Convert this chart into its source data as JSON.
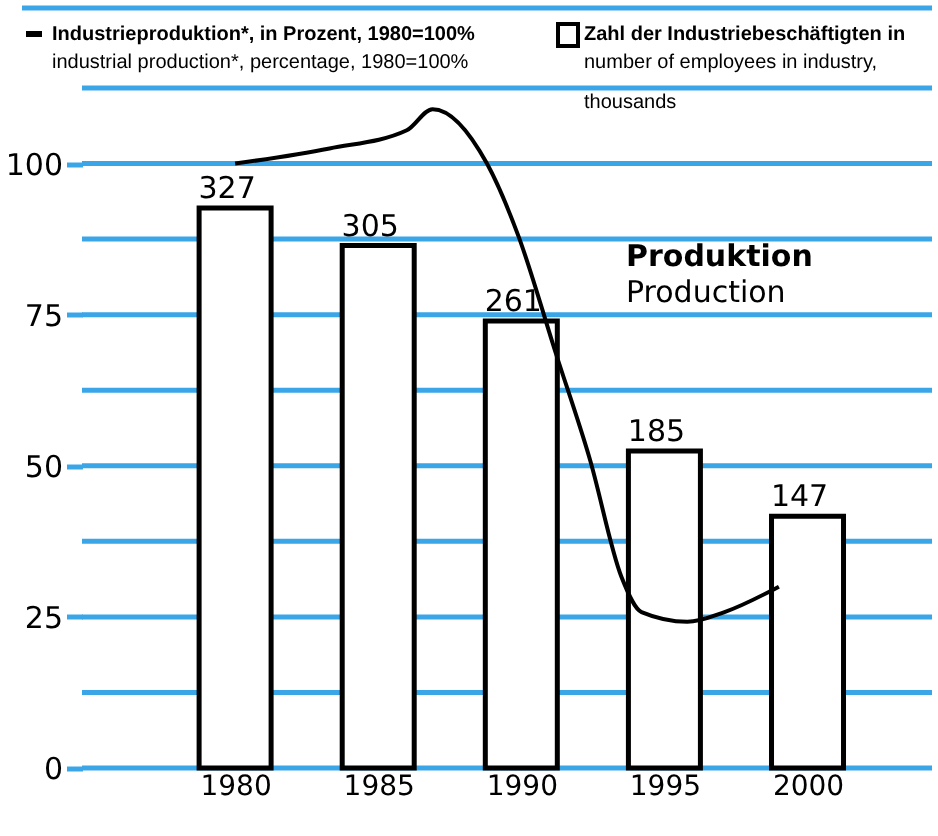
{
  "chart_data": {
    "type": "bar",
    "legend": "top",
    "grid": "y",
    "x": [
      1980,
      1985,
      1990,
      1995,
      2000
    ],
    "xlim": [
      1975,
      2004
    ],
    "xticks": [
      1980,
      1985,
      1990,
      1995,
      2000
    ],
    "ylim": [
      0,
      112.5
    ],
    "yticks": [
      0,
      {
        "value": 12.5,
        "label": null
      },
      25,
      {
        "value": 37.5,
        "label": null
      },
      50,
      {
        "value": 62.5,
        "label": null
      },
      75,
      {
        "value": 87.5,
        "label": null
      },
      100,
      {
        "value": 112.5,
        "label": null
      }
    ],
    "y2lim": [
      0,
      397
    ],
    "annotations": [
      "Produktion\nProduction"
    ],
    "series": [
      {
        "name": "Zahl der Industriebeschäftigten in\nnumber of employees in industry,\nthousands",
        "axis": "y2",
        "color": "#000000",
        "values": [
          327,
          305,
          261,
          185,
          147
        ],
        "value_labels": [
          "327",
          "305",
          "261",
          "185",
          "147"
        ]
      },
      {
        "name": "Industrieproduktion*, in Prozent, 1980=100%\nindustrial production*, percentage, 1980=100%",
        "type": "line",
        "color": "#000000",
        "x": [
          1980,
          1983.3,
          1986,
          1986.9,
          1988.8,
          1989.9,
          1991.2,
          1992.4,
          1993.5,
          1994.2,
          1995.8,
          1997.1,
          1999
        ],
        "values": [
          100,
          102.5,
          105.5,
          109,
          100,
          88,
          68.7,
          51,
          31.6,
          25.8,
          24.2,
          25.8,
          30
        ]
      }
    ]
  }
}
